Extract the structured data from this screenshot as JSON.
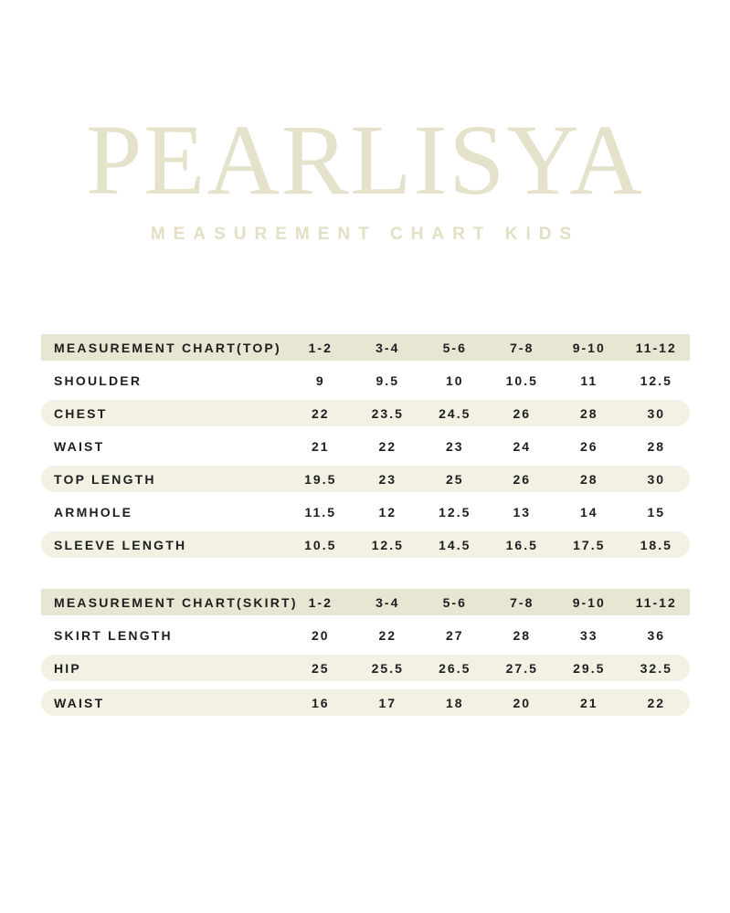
{
  "brand": {
    "logo": "PEARLISYA",
    "subtitle": "MEASUREMENT CHART KIDS"
  },
  "colors": {
    "logo": "#e5e2cb",
    "subtitle": "#e2dfc4",
    "header_row_bg": "#e8e6d2",
    "shaded_row_bg": "#f2f1e4",
    "text": "#1e1e1e",
    "page_bg": "#ffffff"
  },
  "tables": [
    {
      "name": "top",
      "header": {
        "label": "MEASUREMENT CHART(TOP)",
        "values": [
          "1-2",
          "3-4",
          "5-6",
          "7-8",
          "9-10",
          "11-12"
        ]
      },
      "rows": [
        {
          "label": "SHOULDER",
          "values": [
            "9",
            "9.5",
            "10",
            "10.5",
            "11",
            "12.5"
          ],
          "shaded": false
        },
        {
          "label": "CHEST",
          "values": [
            "22",
            "23.5",
            "24.5",
            "26",
            "28",
            "30"
          ],
          "shaded": true
        },
        {
          "label": "WAIST",
          "values": [
            "21",
            "22",
            "23",
            "24",
            "26",
            "28"
          ],
          "shaded": false
        },
        {
          "label": "TOP LENGTH",
          "values": [
            "19.5",
            "23",
            "25",
            "26",
            "28",
            "30"
          ],
          "shaded": true
        },
        {
          "label": "ARMHOLE",
          "values": [
            "11.5",
            "12",
            "12.5",
            "13",
            "14",
            "15"
          ],
          "shaded": false
        },
        {
          "label": "SLEEVE LENGTH",
          "values": [
            "10.5",
            "12.5",
            "14.5",
            "16.5",
            "17.5",
            "18.5"
          ],
          "shaded": true
        }
      ]
    },
    {
      "name": "skirt",
      "header": {
        "label": "MEASUREMENT CHART(SKIRT)",
        "values": [
          "1-2",
          "3-4",
          "5-6",
          "7-8",
          "9-10",
          "11-12"
        ]
      },
      "rows": [
        {
          "label": "SKIRT LENGTH",
          "values": [
            "20",
            "22",
            "27",
            "28",
            "33",
            "36"
          ],
          "shaded": false
        },
        {
          "label": "HIP",
          "values": [
            "25",
            "25.5",
            "26.5",
            "27.5",
            "29.5",
            "32.5"
          ],
          "shaded": true
        },
        {
          "label": "WAIST",
          "values": [
            "16",
            "17",
            "18",
            "20",
            "21",
            "22"
          ],
          "shaded": true,
          "gap_before": true
        }
      ]
    }
  ]
}
